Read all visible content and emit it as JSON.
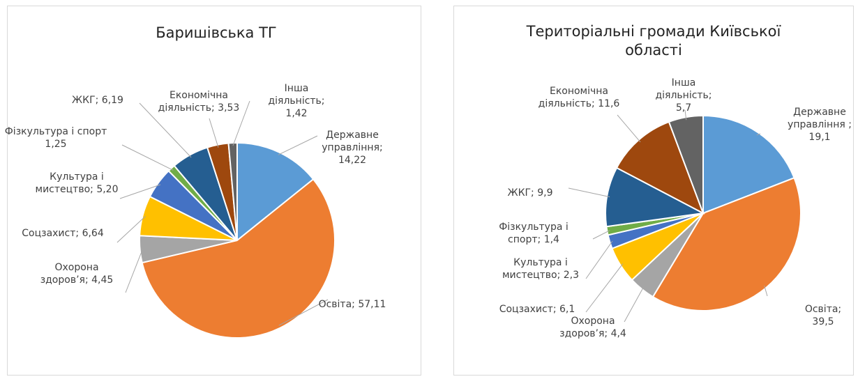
{
  "chart_data": [
    {
      "type": "pie",
      "title": "Баришівська ТГ",
      "categories": [
        "Державне управління;",
        "Освіта;",
        "Охорона здоров’я;",
        "Соцзахист;",
        "Культура і мистецтво;",
        "Фізкультура і спорт",
        "ЖКГ;",
        "Економічна діяльність;",
        "Інша діяльність;"
      ],
      "values": [
        14.22,
        57.11,
        4.45,
        6.64,
        5.2,
        1.25,
        6.19,
        3.53,
        1.42
      ],
      "value_labels": [
        "14,22",
        "57,11",
        "4,45",
        "6,64",
        "5,20",
        "1,25",
        "6,19",
        "3,53",
        "1,42"
      ],
      "colors": [
        "#5b9bd5",
        "#ed7d31",
        "#a5a5a5",
        "#ffc000",
        "#4472c4",
        "#70ad47",
        "#255e91",
        "#9e480e",
        "#636363"
      ]
    },
    {
      "type": "pie",
      "title": "Територіальні громади Київської області",
      "categories": [
        "Державне управління",
        "Освіта;",
        "Охорона здоров’я;",
        "Соцзахист;",
        "Культура і мистецтво;",
        "Фізкультура і спорт;",
        "ЖКГ;",
        "Економічна діяльність;",
        "Інша діяльність;"
      ],
      "values": [
        19.1,
        39.5,
        4.4,
        6.1,
        2.3,
        1.4,
        9.9,
        11.6,
        5.7
      ],
      "value_labels": [
        "; 19,1",
        "39,5",
        "4,4",
        "6,1",
        "2,3",
        "1,4",
        "9,9",
        "11,6",
        "5,7"
      ],
      "colors": [
        "#5b9bd5",
        "#ed7d31",
        "#a5a5a5",
        "#ffc000",
        "#4472c4",
        "#70ad47",
        "#255e91",
        "#9e480e",
        "#636363"
      ]
    }
  ]
}
